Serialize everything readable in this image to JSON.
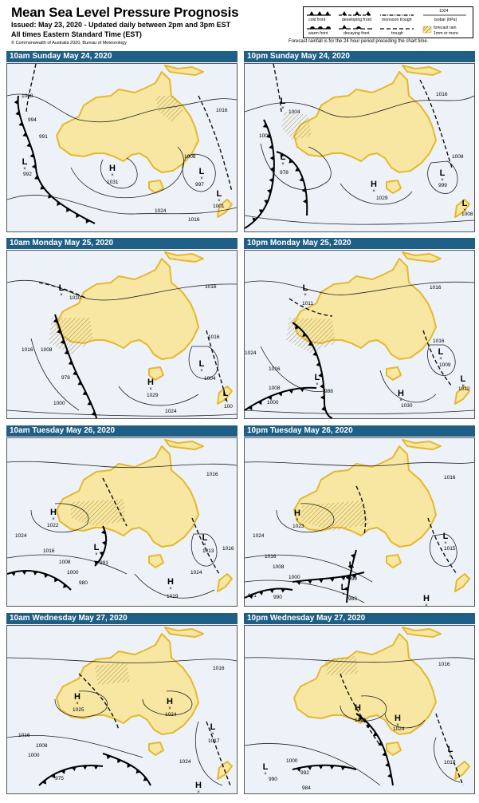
{
  "header": {
    "title": "Mean Sea Level Pressure Prognosis",
    "issued": "Issued: May 23, 2020  -  Updated daily between 2pm and 3pm EST",
    "timezone": "All times Eastern Standard Time (EST)",
    "copyright": "© Commonwealth of Australia 2020, Bureau of Meteorology"
  },
  "legend": {
    "items": [
      "cold front",
      "developing front",
      "monsoon trough",
      "warm front",
      "decaying front",
      "trough"
    ],
    "isobar_value": "1024",
    "isobar_label": "isobar (hPa)",
    "rain_label_1": "forecast rain",
    "rain_label_2": "1mm or more"
  },
  "rain_note": "Forecast rainfall is for the 24 hour period preceding the chart time.",
  "colors": {
    "land": "#f7e7a3",
    "coast": "#e6b82e",
    "sea": "#edf1f8",
    "title_bar": "#1f5f86",
    "front": "#000000"
  },
  "panels": [
    {
      "title": "10am Sunday May 24, 2020",
      "labels": [
        {
          "t": "1008",
          "x": 18,
          "y": 42
        },
        {
          "t": "994",
          "x": 26,
          "y": 72
        },
        {
          "t": "991",
          "x": 40,
          "y": 93
        },
        {
          "t": "992",
          "x": 20,
          "y": 140
        },
        {
          "t": "1031",
          "x": 125,
          "y": 150
        },
        {
          "t": "1008",
          "x": 222,
          "y": 118
        },
        {
          "t": "997",
          "x": 236,
          "y": 153
        },
        {
          "t": "1001",
          "x": 258,
          "y": 180
        },
        {
          "t": "1024",
          "x": 185,
          "y": 186
        },
        {
          "t": "1016",
          "x": 227,
          "y": 197
        },
        {
          "t": "1016",
          "x": 262,
          "y": 60
        }
      ],
      "pressure": [
        {
          "t": "L",
          "x": 22,
          "y": 126
        },
        {
          "t": "H",
          "x": 132,
          "y": 134
        },
        {
          "t": "L",
          "x": 244,
          "y": 138
        },
        {
          "t": "L",
          "x": 266,
          "y": 166
        }
      ]
    },
    {
      "title": "10pm Sunday May 24, 2020",
      "labels": [
        {
          "t": "1004",
          "x": 55,
          "y": 62
        },
        {
          "t": "1008",
          "x": 18,
          "y": 92
        },
        {
          "t": "978",
          "x": 44,
          "y": 138
        },
        {
          "t": "1016",
          "x": 240,
          "y": 40
        },
        {
          "t": "1008",
          "x": 260,
          "y": 118
        },
        {
          "t": "999",
          "x": 243,
          "y": 154
        },
        {
          "t": "1029",
          "x": 165,
          "y": 170
        },
        {
          "t": "1008",
          "x": 272,
          "y": 190
        }
      ],
      "pressure": [
        {
          "t": "L",
          "x": 48,
          "y": 50
        },
        {
          "t": "L",
          "x": 48,
          "y": 120
        },
        {
          "t": "H",
          "x": 162,
          "y": 154
        },
        {
          "t": "L",
          "x": 248,
          "y": 140
        },
        {
          "t": "L",
          "x": 276,
          "y": 178
        }
      ]
    },
    {
      "title": "10am Monday May 25, 2020",
      "labels": [
        {
          "t": "1010",
          "x": 78,
          "y": 61
        },
        {
          "t": "1016",
          "x": 18,
          "y": 126
        },
        {
          "t": "1008",
          "x": 42,
          "y": 126
        },
        {
          "t": "978",
          "x": 68,
          "y": 161
        },
        {
          "t": "1000",
          "x": 58,
          "y": 193
        },
        {
          "t": "1016",
          "x": 248,
          "y": 47
        },
        {
          "t": "1016",
          "x": 252,
          "y": 110
        },
        {
          "t": "1004",
          "x": 247,
          "y": 162
        },
        {
          "t": "1029",
          "x": 175,
          "y": 183
        },
        {
          "t": "1024",
          "x": 198,
          "y": 203
        },
        {
          "t": "100",
          "x": 272,
          "y": 197
        }
      ],
      "pressure": [
        {
          "t": "L",
          "x": 68,
          "y": 50
        },
        {
          "t": "L",
          "x": 244,
          "y": 145
        },
        {
          "t": "H",
          "x": 180,
          "y": 168
        },
        {
          "t": "L",
          "x": 274,
          "y": 182
        }
      ]
    },
    {
      "title": "10pm Monday May 25, 2020",
      "labels": [
        {
          "t": "1011",
          "x": 72,
          "y": 68
        },
        {
          "t": "1016",
          "x": 232,
          "y": 48
        },
        {
          "t": "1024",
          "x": 0,
          "y": 130
        },
        {
          "t": "1016",
          "x": 30,
          "y": 150
        },
        {
          "t": "1008",
          "x": 30,
          "y": 174
        },
        {
          "t": "1000",
          "x": 28,
          "y": 192
        },
        {
          "t": "988",
          "x": 100,
          "y": 178
        },
        {
          "t": "1016",
          "x": 236,
          "y": 115
        },
        {
          "t": "1009",
          "x": 244,
          "y": 145
        },
        {
          "t": "1030",
          "x": 196,
          "y": 196
        },
        {
          "t": "1012",
          "x": 268,
          "y": 175
        }
      ],
      "pressure": [
        {
          "t": "L",
          "x": 76,
          "y": 50
        },
        {
          "t": "L",
          "x": 91,
          "y": 162
        },
        {
          "t": "L",
          "x": 246,
          "y": 130
        },
        {
          "t": "H",
          "x": 196,
          "y": 182
        },
        {
          "t": "L",
          "x": 274,
          "y": 164
        }
      ]
    },
    {
      "title": "10am Tuesday May 26, 2020",
      "labels": [
        {
          "t": "1022",
          "x": 50,
          "y": 111
        },
        {
          "t": "1016",
          "x": 250,
          "y": 47
        },
        {
          "t": "1024",
          "x": 10,
          "y": 124
        },
        {
          "t": "1016",
          "x": 45,
          "y": 143
        },
        {
          "t": "1008",
          "x": 65,
          "y": 157
        },
        {
          "t": "1000",
          "x": 75,
          "y": 170
        },
        {
          "t": "991",
          "x": 116,
          "y": 158
        },
        {
          "t": "980",
          "x": 90,
          "y": 183
        },
        {
          "t": "1013",
          "x": 245,
          "y": 143
        },
        {
          "t": "1016",
          "x": 270,
          "y": 140
        },
        {
          "t": "1024",
          "x": 230,
          "y": 170
        },
        {
          "t": "1029",
          "x": 200,
          "y": 200
        }
      ],
      "pressure": [
        {
          "t": "H",
          "x": 58,
          "y": 96
        },
        {
          "t": "L",
          "x": 112,
          "y": 140
        },
        {
          "t": "L",
          "x": 248,
          "y": 128
        },
        {
          "t": "H",
          "x": 205,
          "y": 183
        }
      ]
    },
    {
      "title": "10pm Tuesday May 26, 2020",
      "labels": [
        {
          "t": "1016",
          "x": 250,
          "y": 51
        },
        {
          "t": "1023",
          "x": 60,
          "y": 112
        },
        {
          "t": "1024",
          "x": 10,
          "y": 124
        },
        {
          "t": "1016",
          "x": 25,
          "y": 150
        },
        {
          "t": "1008",
          "x": 35,
          "y": 163
        },
        {
          "t": "1000",
          "x": 55,
          "y": 176
        },
        {
          "t": "999",
          "x": 130,
          "y": 178
        },
        {
          "t": "991",
          "x": 4,
          "y": 199
        },
        {
          "t": "990",
          "x": 36,
          "y": 201
        },
        {
          "t": "983",
          "x": 130,
          "y": 203
        },
        {
          "t": "1015",
          "x": 250,
          "y": 140
        }
      ],
      "pressure": [
        {
          "t": "H",
          "x": 66,
          "y": 97
        },
        {
          "t": "L",
          "x": 134,
          "y": 162
        },
        {
          "t": "L",
          "x": 124,
          "y": 190
        },
        {
          "t": "L",
          "x": 252,
          "y": 126
        },
        {
          "t": "H",
          "x": 228,
          "y": 204
        }
      ]
    },
    {
      "title": "10am Wednesday May 27, 2020",
      "labels": [
        {
          "t": "1016",
          "x": 258,
          "y": 55
        },
        {
          "t": "1025",
          "x": 82,
          "y": 107
        },
        {
          "t": "1024",
          "x": 198,
          "y": 113
        },
        {
          "t": "1016",
          "x": 14,
          "y": 139
        },
        {
          "t": "1008",
          "x": 36,
          "y": 152
        },
        {
          "t": "1000",
          "x": 26,
          "y": 164
        },
        {
          "t": "1017",
          "x": 252,
          "y": 146
        },
        {
          "t": "1024",
          "x": 216,
          "y": 172
        },
        {
          "t": "975",
          "x": 60,
          "y": 193
        }
      ],
      "pressure": [
        {
          "t": "H",
          "x": 88,
          "y": 92
        },
        {
          "t": "H",
          "x": 204,
          "y": 98
        },
        {
          "t": "L",
          "x": 258,
          "y": 130
        },
        {
          "t": "H",
          "x": 240,
          "y": 203
        }
      ]
    },
    {
      "title": "10pm Wednesday May 27, 2020",
      "labels": [
        {
          "t": "1016",
          "x": 243,
          "y": 50
        },
        {
          "t": "1026",
          "x": 138,
          "y": 120
        },
        {
          "t": "1024",
          "x": 186,
          "y": 131
        },
        {
          "t": "1000",
          "x": 52,
          "y": 171
        },
        {
          "t": "992",
          "x": 70,
          "y": 186
        },
        {
          "t": "990",
          "x": 30,
          "y": 194
        },
        {
          "t": "984",
          "x": 72,
          "y": 205
        },
        {
          "t": "1017",
          "x": 250,
          "y": 173
        }
      ],
      "pressure": [
        {
          "t": "H",
          "x": 142,
          "y": 106
        },
        {
          "t": "H",
          "x": 192,
          "y": 119
        },
        {
          "t": "L",
          "x": 26,
          "y": 180
        },
        {
          "t": "L",
          "x": 258,
          "y": 158
        }
      ]
    }
  ]
}
